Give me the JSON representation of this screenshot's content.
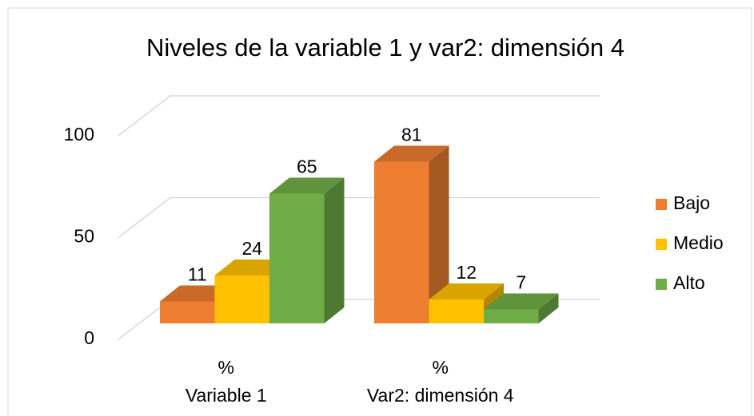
{
  "chart_data": {
    "type": "bar3d",
    "title": "Niveles de la variable 1 y var2: dimensión 4",
    "categories": [
      [
        "%",
        "Variable 1"
      ],
      [
        "%",
        "Var2: dimensión 4"
      ]
    ],
    "series": [
      {
        "name": "Bajo",
        "color": "#ed7d31",
        "values": [
          11,
          81
        ]
      },
      {
        "name": "Medio",
        "color": "#ffc000",
        "values": [
          24,
          12
        ]
      },
      {
        "name": "Alto",
        "color": "#70ad47",
        "values": [
          65,
          7
        ]
      }
    ],
    "ylim": [
      0,
      100
    ],
    "yticks": [
      0,
      50,
      100
    ],
    "grid": true,
    "legend": "right"
  }
}
